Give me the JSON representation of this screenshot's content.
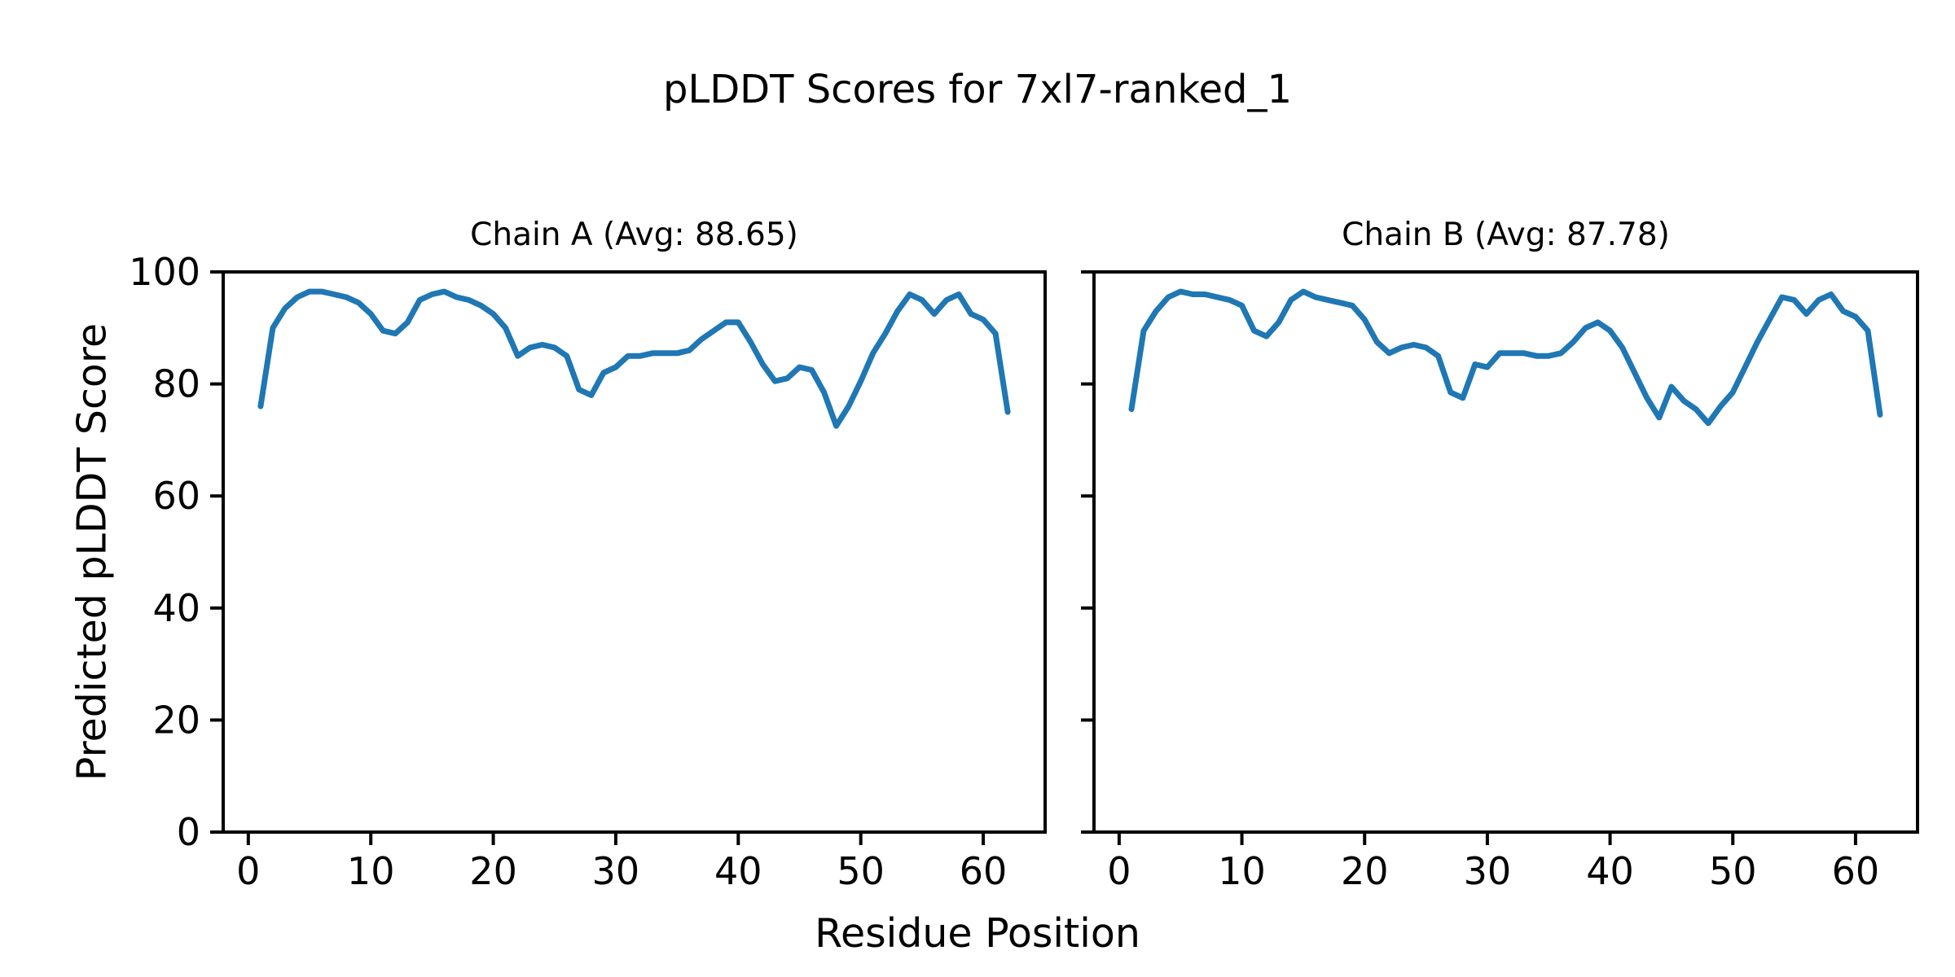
{
  "figure": {
    "suptitle": "pLDDT Scores for 7xl7-ranked_1",
    "xlabel": "Residue Position",
    "ylabel": "Predicted pLDDT Score",
    "background_color": "#ffffff",
    "line_color": "#1f77b4",
    "axis_color": "#000000"
  },
  "chart_data": [
    {
      "type": "line",
      "title": "Chain A (Avg: 88.65)",
      "chain": "A",
      "avg": 88.65,
      "xlabel": "Residue Position",
      "ylabel": "Predicted pLDDT Score",
      "xlim": [
        -2.05,
        65.05
      ],
      "ylim": [
        0,
        100
      ],
      "xticks": [
        0,
        10,
        20,
        30,
        40,
        50,
        60
      ],
      "yticks": [
        0,
        20,
        40,
        60,
        80,
        100
      ],
      "ytick_labels_visible": true,
      "grid": false,
      "legend": "none",
      "series": [
        {
          "name": "Chain A pLDDT",
          "color": "#1f77b4",
          "x": [
            1,
            2,
            3,
            4,
            5,
            6,
            7,
            8,
            9,
            10,
            11,
            12,
            13,
            14,
            15,
            16,
            17,
            18,
            19,
            20,
            21,
            22,
            23,
            24,
            25,
            26,
            27,
            28,
            29,
            30,
            31,
            32,
            33,
            34,
            35,
            36,
            37,
            38,
            39,
            40,
            41,
            42,
            43,
            44,
            45,
            46,
            47,
            48,
            49,
            50,
            51,
            52,
            53,
            54,
            55,
            56,
            57,
            58,
            59,
            60,
            61,
            62
          ],
          "values": [
            76,
            90,
            93.5,
            95.5,
            96.5,
            96.5,
            96,
            95.5,
            94.5,
            92.5,
            89.5,
            89,
            91,
            95,
            96,
            96.5,
            95.5,
            95,
            94,
            92.5,
            90,
            85,
            86.5,
            87,
            86.5,
            85,
            79,
            78,
            82,
            83,
            85,
            85,
            85.5,
            85.5,
            85.5,
            86,
            88,
            89.5,
            91,
            91,
            87.5,
            83.5,
            80.5,
            81,
            83,
            82.5,
            78.5,
            72.5,
            76,
            80.5,
            85.5,
            89,
            93,
            96,
            95,
            92.5,
            95,
            96,
            92.5,
            91.5,
            89,
            75
          ]
        }
      ]
    },
    {
      "type": "line",
      "title": "Chain B (Avg: 87.78)",
      "chain": "B",
      "avg": 87.78,
      "xlabel": "Residue Position",
      "ylabel": "Predicted pLDDT Score",
      "xlim": [
        -2.05,
        65.05
      ],
      "ylim": [
        0,
        100
      ],
      "xticks": [
        0,
        10,
        20,
        30,
        40,
        50,
        60
      ],
      "yticks": [
        0,
        20,
        40,
        60,
        80,
        100
      ],
      "ytick_labels_visible": false,
      "grid": false,
      "legend": "none",
      "series": [
        {
          "name": "Chain B pLDDT",
          "color": "#1f77b4",
          "x": [
            1,
            2,
            3,
            4,
            5,
            6,
            7,
            8,
            9,
            10,
            11,
            12,
            13,
            14,
            15,
            16,
            17,
            18,
            19,
            20,
            21,
            22,
            23,
            24,
            25,
            26,
            27,
            28,
            29,
            30,
            31,
            32,
            33,
            34,
            35,
            36,
            37,
            38,
            39,
            40,
            41,
            42,
            43,
            44,
            45,
            46,
            47,
            48,
            49,
            50,
            51,
            52,
            53,
            54,
            55,
            56,
            57,
            58,
            59,
            60,
            61,
            62
          ],
          "values": [
            75.5,
            89.5,
            93,
            95.5,
            96.5,
            96,
            96,
            95.5,
            95,
            94,
            89.5,
            88.5,
            91,
            95,
            96.5,
            95.5,
            95,
            94.5,
            94,
            91.5,
            87.5,
            85.5,
            86.5,
            87,
            86.5,
            85,
            78.5,
            77.5,
            83.5,
            83,
            85.5,
            85.5,
            85.5,
            85,
            85,
            85.5,
            87.5,
            90,
            91,
            89.5,
            86.5,
            82,
            77.5,
            74,
            79.5,
            77,
            75.5,
            73,
            76,
            78.5,
            83,
            87.5,
            91.5,
            95.5,
            95,
            92.5,
            95,
            96,
            93,
            92,
            89.5,
            74.5
          ]
        }
      ]
    }
  ]
}
